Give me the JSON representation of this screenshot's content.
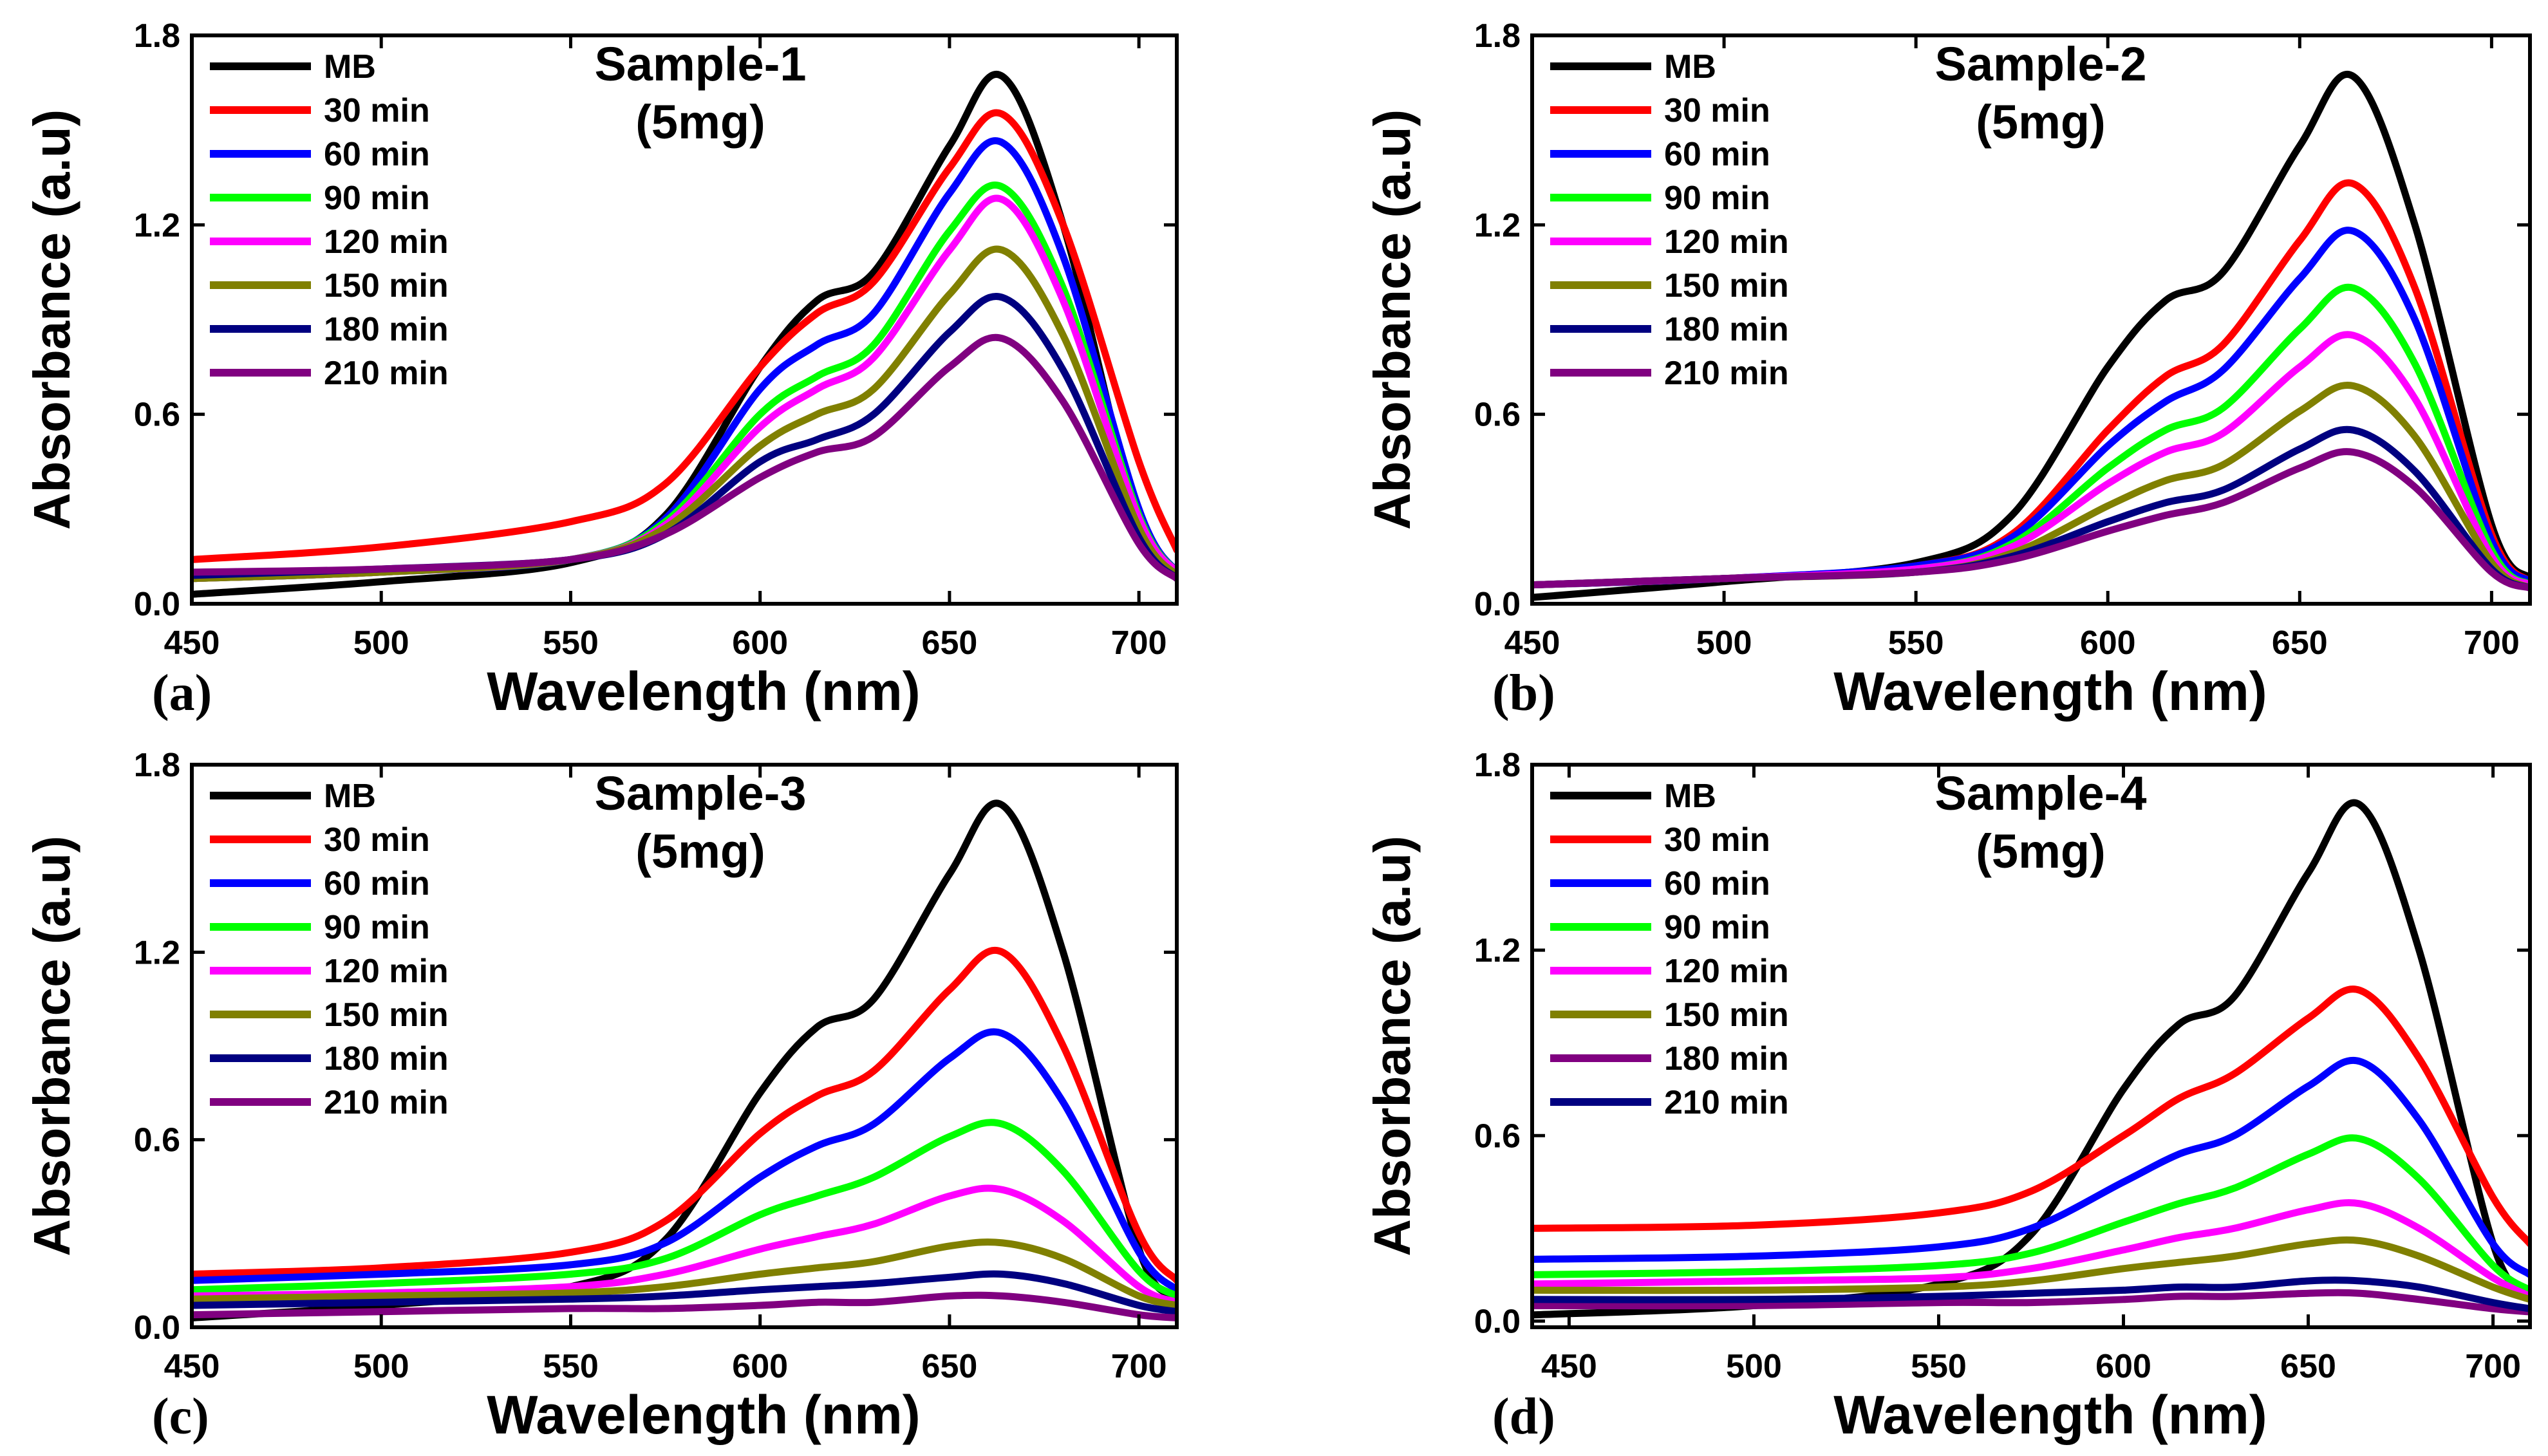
{
  "chart_data": [
    {
      "type": "line",
      "panel_label": "(a)",
      "title": "Sample-1",
      "subtitle": "(5mg)",
      "xlabel": "Wavelength (nm)",
      "ylabel": "Absorbance (a.u)",
      "xlim": [
        450,
        710
      ],
      "ylim": [
        0.0,
        1.8
      ],
      "xticks": [
        "450",
        "500",
        "550",
        "600",
        "650",
        "700"
      ],
      "yticks": [
        "0.0",
        "0.6",
        "1.2",
        "1.8"
      ],
      "x": [
        450,
        500,
        550,
        575,
        600,
        615,
        630,
        650,
        664,
        680,
        700,
        710
      ],
      "legend_position": "top-left",
      "series": [
        {
          "name": "MB",
          "color": "#000000",
          "values": [
            0.03,
            0.07,
            0.13,
            0.28,
            0.75,
            0.96,
            1.05,
            1.45,
            1.67,
            1.2,
            0.25,
            0.1
          ]
        },
        {
          "name": "30 min",
          "color": "#ff0000",
          "values": [
            0.14,
            0.18,
            0.26,
            0.38,
            0.75,
            0.92,
            1.02,
            1.38,
            1.55,
            1.2,
            0.45,
            0.17
          ]
        },
        {
          "name": "60 min",
          "color": "#0000ff",
          "values": [
            0.08,
            0.1,
            0.14,
            0.27,
            0.68,
            0.82,
            0.92,
            1.3,
            1.46,
            1.1,
            0.3,
            0.1
          ]
        },
        {
          "name": "90 min",
          "color": "#00ff00",
          "values": [
            0.08,
            0.1,
            0.14,
            0.26,
            0.6,
            0.72,
            0.82,
            1.18,
            1.32,
            1.0,
            0.28,
            0.1
          ]
        },
        {
          "name": "120 min",
          "color": "#ff00ff",
          "values": [
            0.08,
            0.1,
            0.14,
            0.25,
            0.56,
            0.68,
            0.78,
            1.12,
            1.28,
            0.96,
            0.27,
            0.1
          ]
        },
        {
          "name": "150 min",
          "color": "#808000",
          "values": [
            0.08,
            0.1,
            0.14,
            0.24,
            0.5,
            0.6,
            0.68,
            0.98,
            1.12,
            0.85,
            0.24,
            0.09
          ]
        },
        {
          "name": "180 min",
          "color": "#000080",
          "values": [
            0.09,
            0.11,
            0.14,
            0.22,
            0.45,
            0.52,
            0.6,
            0.86,
            0.97,
            0.74,
            0.21,
            0.08
          ]
        },
        {
          "name": "210 min",
          "color": "#800080",
          "values": [
            0.1,
            0.11,
            0.14,
            0.22,
            0.4,
            0.48,
            0.53,
            0.75,
            0.84,
            0.64,
            0.19,
            0.08
          ]
        }
      ]
    },
    {
      "type": "line",
      "panel_label": "(b)",
      "title": "Sample-2",
      "subtitle": "(5mg)",
      "xlabel": "Wavelength (nm)",
      "ylabel": "Absorbance (a.u)",
      "xlim": [
        450,
        710
      ],
      "ylim": [
        0.0,
        1.8
      ],
      "xticks": [
        "450",
        "500",
        "550",
        "600",
        "650",
        "700"
      ],
      "yticks": [
        "0.0",
        "0.6",
        "1.2",
        "1.8"
      ],
      "x": [
        450,
        500,
        550,
        575,
        600,
        615,
        630,
        650,
        664,
        680,
        700,
        710
      ],
      "legend_position": "top-left",
      "series": [
        {
          "name": "MB",
          "color": "#000000",
          "values": [
            0.02,
            0.07,
            0.13,
            0.28,
            0.75,
            0.96,
            1.05,
            1.45,
            1.67,
            1.2,
            0.25,
            0.08
          ]
        },
        {
          "name": "30 min",
          "color": "#ff0000",
          "values": [
            0.06,
            0.08,
            0.12,
            0.22,
            0.55,
            0.72,
            0.82,
            1.15,
            1.33,
            1.0,
            0.22,
            0.07
          ]
        },
        {
          "name": "60 min",
          "color": "#0000ff",
          "values": [
            0.06,
            0.08,
            0.12,
            0.21,
            0.5,
            0.64,
            0.74,
            1.03,
            1.18,
            0.9,
            0.2,
            0.07
          ]
        },
        {
          "name": "90 min",
          "color": "#00ff00",
          "values": [
            0.06,
            0.08,
            0.11,
            0.19,
            0.43,
            0.55,
            0.62,
            0.87,
            1.0,
            0.76,
            0.17,
            0.06
          ]
        },
        {
          "name": "120 min",
          "color": "#ff00ff",
          "values": [
            0.06,
            0.08,
            0.11,
            0.18,
            0.38,
            0.48,
            0.54,
            0.75,
            0.85,
            0.65,
            0.15,
            0.06
          ]
        },
        {
          "name": "150 min",
          "color": "#808000",
          "values": [
            0.06,
            0.08,
            0.1,
            0.16,
            0.31,
            0.39,
            0.44,
            0.61,
            0.69,
            0.53,
            0.13,
            0.05
          ]
        },
        {
          "name": "180 min",
          "color": "#000080",
          "values": [
            0.06,
            0.08,
            0.1,
            0.15,
            0.26,
            0.32,
            0.36,
            0.49,
            0.55,
            0.42,
            0.11,
            0.05
          ]
        },
        {
          "name": "210 min",
          "color": "#800080",
          "values": [
            0.06,
            0.08,
            0.1,
            0.14,
            0.23,
            0.28,
            0.32,
            0.43,
            0.48,
            0.37,
            0.1,
            0.05
          ]
        }
      ]
    },
    {
      "type": "line",
      "panel_label": "(c)",
      "title": "Sample-3",
      "subtitle": "(5mg)",
      "xlabel": "Wavelength (nm)",
      "ylabel": "Absorbance (a.u)",
      "xlim": [
        450,
        710
      ],
      "ylim": [
        0.0,
        1.8
      ],
      "xticks": [
        "450",
        "500",
        "550",
        "600",
        "650",
        "700"
      ],
      "yticks": [
        "0.0",
        "0.6",
        "1.2",
        "1.8"
      ],
      "x": [
        450,
        500,
        550,
        575,
        600,
        615,
        630,
        650,
        664,
        680,
        700,
        710
      ],
      "legend_position": "top-left",
      "series": [
        {
          "name": "MB",
          "color": "#000000",
          "values": [
            0.03,
            0.07,
            0.13,
            0.28,
            0.75,
            0.96,
            1.05,
            1.45,
            1.67,
            1.2,
            0.25,
            0.1
          ]
        },
        {
          "name": "30 min",
          "color": "#ff0000",
          "values": [
            0.17,
            0.19,
            0.24,
            0.34,
            0.62,
            0.74,
            0.82,
            1.08,
            1.2,
            0.9,
            0.3,
            0.15
          ]
        },
        {
          "name": "60 min",
          "color": "#0000ff",
          "values": [
            0.15,
            0.17,
            0.2,
            0.27,
            0.48,
            0.58,
            0.65,
            0.86,
            0.94,
            0.72,
            0.24,
            0.12
          ]
        },
        {
          "name": "90 min",
          "color": "#00ff00",
          "values": [
            0.12,
            0.14,
            0.17,
            0.22,
            0.36,
            0.42,
            0.48,
            0.61,
            0.65,
            0.5,
            0.18,
            0.1
          ]
        },
        {
          "name": "120 min",
          "color": "#ff00ff",
          "values": [
            0.1,
            0.11,
            0.13,
            0.17,
            0.25,
            0.29,
            0.33,
            0.42,
            0.44,
            0.34,
            0.13,
            0.08
          ]
        },
        {
          "name": "150 min",
          "color": "#808000",
          "values": [
            0.09,
            0.1,
            0.11,
            0.13,
            0.17,
            0.19,
            0.21,
            0.26,
            0.27,
            0.22,
            0.1,
            0.07
          ]
        },
        {
          "name": "180 min",
          "color": "#000080",
          "values": [
            0.07,
            0.08,
            0.09,
            0.1,
            0.12,
            0.13,
            0.14,
            0.16,
            0.17,
            0.14,
            0.07,
            0.05
          ]
        },
        {
          "name": "210 min",
          "color": "#800080",
          "values": [
            0.04,
            0.05,
            0.06,
            0.06,
            0.07,
            0.08,
            0.08,
            0.1,
            0.1,
            0.08,
            0.04,
            0.03
          ]
        }
      ]
    },
    {
      "type": "line",
      "panel_label": "(d)",
      "title": "Sample-4",
      "subtitle": "(5mg)",
      "xlabel": "Wavelength (nm)",
      "ylabel": "Absorbance (a.u)",
      "xlim": [
        440,
        710
      ],
      "ylim": [
        -0.02,
        1.8
      ],
      "xticks": [
        "450",
        "500",
        "550",
        "600",
        "650",
        "700"
      ],
      "yticks": [
        "0.0",
        "0.6",
        "1.2",
        "1.8"
      ],
      "x": [
        440,
        500,
        550,
        575,
        600,
        615,
        630,
        650,
        664,
        680,
        700,
        710
      ],
      "legend_position": "top-left",
      "series": [
        {
          "name": "MB",
          "color": "#000000",
          "values": [
            0.02,
            0.05,
            0.12,
            0.28,
            0.75,
            0.96,
            1.05,
            1.45,
            1.67,
            1.2,
            0.25,
            0.08
          ]
        },
        {
          "name": "30 min",
          "color": "#ff0000",
          "values": [
            0.3,
            0.31,
            0.35,
            0.42,
            0.6,
            0.72,
            0.8,
            0.98,
            1.07,
            0.85,
            0.4,
            0.25
          ]
        },
        {
          "name": "60 min",
          "color": "#0000ff",
          "values": [
            0.2,
            0.21,
            0.24,
            0.3,
            0.45,
            0.54,
            0.6,
            0.76,
            0.84,
            0.65,
            0.25,
            0.15
          ]
        },
        {
          "name": "90 min",
          "color": "#00ff00",
          "values": [
            0.15,
            0.16,
            0.18,
            0.22,
            0.32,
            0.38,
            0.43,
            0.54,
            0.59,
            0.46,
            0.18,
            0.1
          ]
        },
        {
          "name": "120 min",
          "color": "#ff00ff",
          "values": [
            0.12,
            0.13,
            0.14,
            0.17,
            0.23,
            0.27,
            0.3,
            0.36,
            0.38,
            0.3,
            0.14,
            0.08
          ]
        },
        {
          "name": "150 min",
          "color": "#808000",
          "values": [
            0.1,
            0.1,
            0.11,
            0.13,
            0.17,
            0.19,
            0.21,
            0.25,
            0.26,
            0.21,
            0.11,
            0.07
          ]
        },
        {
          "name": "180 min",
          "color": "#800080",
          "values": [
            0.05,
            0.05,
            0.06,
            0.06,
            0.07,
            0.08,
            0.08,
            0.09,
            0.09,
            0.07,
            0.04,
            0.03
          ]
        },
        {
          "name": "210 min",
          "color": "#000080",
          "values": [
            0.07,
            0.07,
            0.08,
            0.09,
            0.1,
            0.11,
            0.11,
            0.13,
            0.13,
            0.11,
            0.06,
            0.04
          ]
        }
      ]
    }
  ]
}
